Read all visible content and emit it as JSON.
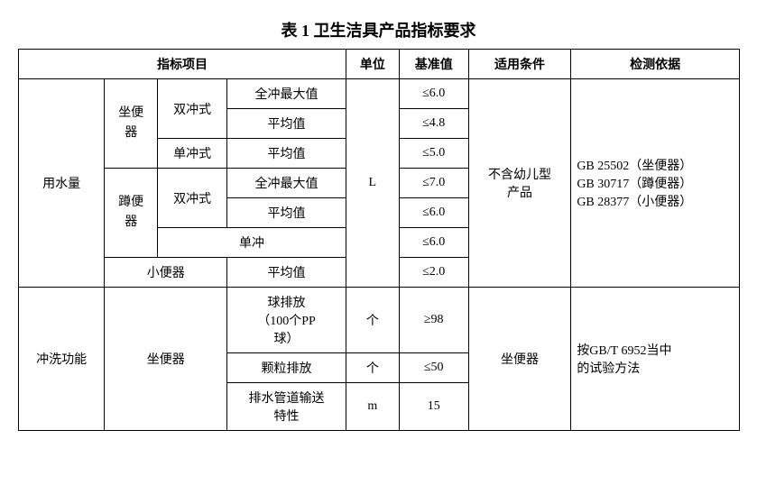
{
  "title": "表 1 卫生洁具产品指标要求",
  "headers": {
    "indicator": "指标项目",
    "unit": "单位",
    "baseline": "基准值",
    "condition": "适用条件",
    "reference": "检测依据"
  },
  "section1": {
    "category": "用水量",
    "subcat1": "坐便\n器",
    "subcat1_type1": "双冲式",
    "subcat1_type1_item1": "全冲最大值",
    "subcat1_type1_item1_val": "≤6.0",
    "subcat1_type1_item2": "平均值",
    "subcat1_type1_item2_val": "≤4.8",
    "subcat1_type2": "单冲式",
    "subcat1_type2_item1": "平均值",
    "subcat1_type2_item1_val": "≤5.0",
    "subcat2": "蹲便\n器",
    "subcat2_type1": "双冲式",
    "subcat2_type1_item1": "全冲最大值",
    "subcat2_type1_item1_val": "≤7.0",
    "subcat2_type1_item2": "平均值",
    "subcat2_type1_item2_val": "≤6.0",
    "subcat2_type2": "单冲",
    "subcat2_type2_item1_val": "≤6.0",
    "subcat3": "小便器",
    "subcat3_item1": "平均值",
    "subcat3_item1_val": "≤2.0",
    "unit": "L",
    "condition": "不含幼儿型\n产品",
    "reference": "GB 25502（坐便器）\nGB 30717（蹲便器）\nGB 28377（小便器）"
  },
  "section2": {
    "category": "冲洗功能",
    "subcat": "坐便器",
    "item1": "球排放\n（100个PP\n球）",
    "item1_unit": "个",
    "item1_val": "≥98",
    "item2": "颗粒排放",
    "item2_unit": "个",
    "item2_val": "≤50",
    "item3": "排水管道输送\n特性",
    "item3_unit": "m",
    "item3_val": "15",
    "condition": "坐便器",
    "reference": "按GB/T 6952当中\n的试验方法"
  }
}
